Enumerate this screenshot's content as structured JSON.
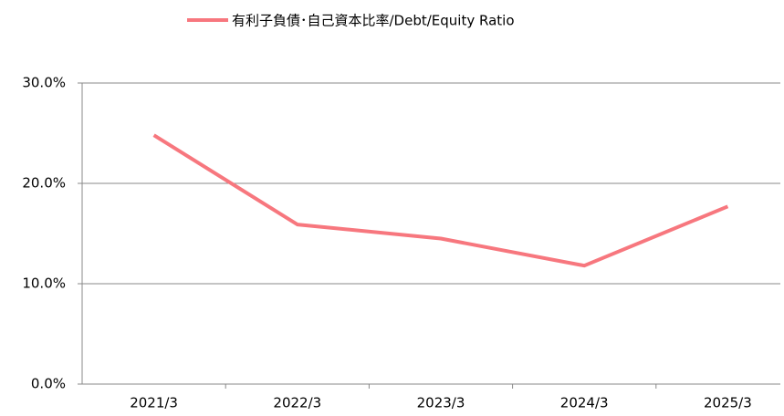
{
  "chart_data": {
    "type": "line",
    "categories": [
      "2021/3",
      "2022/3",
      "2023/3",
      "2024/3",
      "2025/3"
    ],
    "series": [
      {
        "name": "有利子負債･自己資本比率/Debt/Equity Ratio",
        "color": "#f7777e",
        "values": [
          24.8,
          15.9,
          14.5,
          11.8,
          17.7
        ]
      }
    ],
    "ylim": [
      0,
      30
    ],
    "yticks": [
      {
        "value": 0,
        "label": "0.0%"
      },
      {
        "value": 10,
        "label": "10.0%"
      },
      {
        "value": 20,
        "label": "20.0%"
      },
      {
        "value": 30,
        "label": "30.0%"
      }
    ],
    "grid": true
  }
}
